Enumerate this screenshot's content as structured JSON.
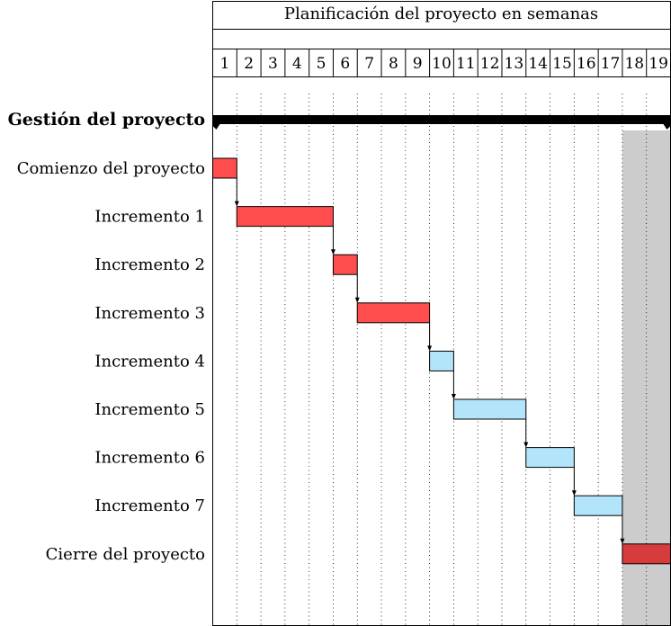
{
  "chart_data": {
    "type": "gantt",
    "title": "Planificación del proyecto en semanas",
    "weeks": [
      1,
      2,
      3,
      4,
      5,
      6,
      7,
      8,
      9,
      10,
      11,
      12,
      13,
      14,
      15,
      16,
      17,
      18,
      19
    ],
    "group": {
      "label": "Gestión del proyecto",
      "start": 1,
      "end": 19
    },
    "tasks": [
      {
        "label": "Comienzo del proyecto",
        "start": 1,
        "end": 1,
        "color": "#ff4d4d"
      },
      {
        "label": "Incremento 1",
        "start": 2,
        "end": 5,
        "color": "#ff4d4d"
      },
      {
        "label": "Incremento 2",
        "start": 6,
        "end": 6,
        "color": "#ff4d4d"
      },
      {
        "label": "Incremento 3",
        "start": 7,
        "end": 9,
        "color": "#ff4d4d"
      },
      {
        "label": "Incremento 4",
        "start": 10,
        "end": 10,
        "color": "#b3e5fa"
      },
      {
        "label": "Incremento 5",
        "start": 11,
        "end": 13,
        "color": "#b3e5fa"
      },
      {
        "label": "Incremento 6",
        "start": 14,
        "end": 15,
        "color": "#b3e5fa"
      },
      {
        "label": "Incremento 7",
        "start": 16,
        "end": 17,
        "color": "#b3e5fa"
      },
      {
        "label": "Cierre del proyecto",
        "start": 18,
        "end": 19,
        "color": "#d63c3c"
      }
    ],
    "highlight": {
      "start": 18,
      "end": 19,
      "color": "#cccccc"
    },
    "dependencies": [
      [
        0,
        1
      ],
      [
        1,
        2
      ],
      [
        2,
        3
      ],
      [
        3,
        4
      ],
      [
        4,
        5
      ],
      [
        5,
        6
      ],
      [
        6,
        7
      ],
      [
        7,
        8
      ]
    ],
    "grid": true
  }
}
